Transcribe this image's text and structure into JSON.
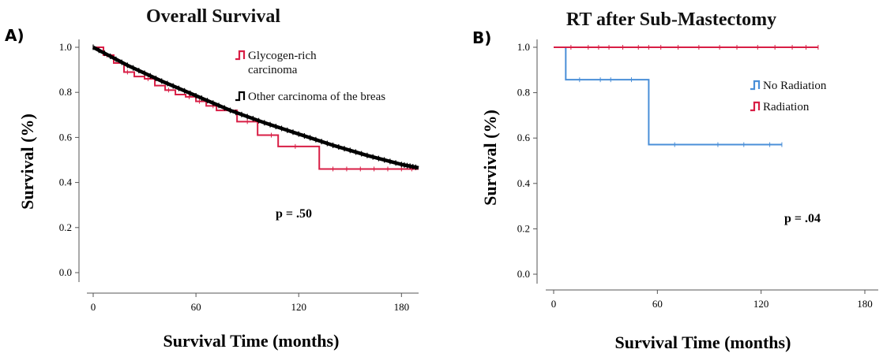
{
  "chart_data": [
    {
      "type": "line",
      "panel_label": "A)",
      "title": "Overall Survival",
      "xlabel": "Survival Time (months)",
      "ylabel": "Survival (%)",
      "xlim": [
        0,
        190
      ],
      "ylim": [
        0,
        1.0
      ],
      "xticks": [
        0,
        60,
        120,
        180
      ],
      "yticks": [
        "0.0",
        "0.2",
        "0.4",
        "0.6",
        "0.8",
        "1.0"
      ],
      "annotation": "p = .50",
      "legend_position": "top-right",
      "series": [
        {
          "name": "Glycogen-rich carcinoma",
          "legend_lines": [
            "Glycogen-rich",
            "carcinoma"
          ],
          "color": "#d81e45",
          "step": true,
          "points": [
            [
              0,
              1.0
            ],
            [
              6,
              0.965
            ],
            [
              12,
              0.93
            ],
            [
              18,
              0.89
            ],
            [
              24,
              0.87
            ],
            [
              30,
              0.86
            ],
            [
              36,
              0.83
            ],
            [
              42,
              0.81
            ],
            [
              48,
              0.79
            ],
            [
              54,
              0.78
            ],
            [
              60,
              0.76
            ],
            [
              66,
              0.74
            ],
            [
              72,
              0.72
            ],
            [
              84,
              0.67
            ],
            [
              96,
              0.61
            ],
            [
              108,
              0.56
            ],
            [
              132,
              0.46
            ],
            [
              190,
              0.46
            ]
          ],
          "censors": [
            [
              8,
              0.965
            ],
            [
              20,
              0.89
            ],
            [
              32,
              0.86
            ],
            [
              44,
              0.81
            ],
            [
              56,
              0.78
            ],
            [
              62,
              0.76
            ],
            [
              70,
              0.74
            ],
            [
              80,
              0.72
            ],
            [
              90,
              0.67
            ],
            [
              104,
              0.61
            ],
            [
              118,
              0.56
            ],
            [
              140,
              0.46
            ],
            [
              148,
              0.46
            ],
            [
              156,
              0.46
            ],
            [
              164,
              0.46
            ],
            [
              172,
              0.46
            ],
            [
              180,
              0.46
            ],
            [
              186,
              0.46
            ]
          ]
        },
        {
          "name": "Other carcinoma of the breas",
          "color": "#000000",
          "step": false,
          "smooth": true,
          "points": [
            [
              0,
              1.0
            ],
            [
              20,
              0.92
            ],
            [
              40,
              0.85
            ],
            [
              60,
              0.785
            ],
            [
              80,
              0.72
            ],
            [
              100,
              0.665
            ],
            [
              120,
              0.615
            ],
            [
              140,
              0.565
            ],
            [
              160,
              0.52
            ],
            [
              180,
              0.48
            ],
            [
              190,
              0.465
            ]
          ]
        }
      ]
    },
    {
      "type": "line",
      "panel_label": "B)",
      "title": "RT after Sub-Mastectomy",
      "xlabel": "Survival Time (months)",
      "ylabel": "Survival (%)",
      "xlim": [
        0,
        180
      ],
      "ylim": [
        0,
        1.0
      ],
      "xticks": [
        0,
        60,
        120,
        180
      ],
      "yticks": [
        "0.0",
        "0.2",
        "0.4",
        "0.6",
        "0.8",
        "1.0"
      ],
      "annotation": "p = .04",
      "legend_position": "right",
      "series": [
        {
          "name": "No Radiation",
          "color": "#4a8fd8",
          "step": true,
          "points": [
            [
              0,
              1.0
            ],
            [
              7,
              1.0
            ],
            [
              7,
              0.857
            ],
            [
              55,
              0.857
            ],
            [
              55,
              0.571
            ],
            [
              132,
              0.571
            ]
          ],
          "censors": [
            [
              15,
              0.857
            ],
            [
              27,
              0.857
            ],
            [
              33,
              0.857
            ],
            [
              45,
              0.857
            ],
            [
              70,
              0.571
            ],
            [
              95,
              0.571
            ],
            [
              110,
              0.571
            ],
            [
              125,
              0.571
            ],
            [
              132,
              0.571
            ]
          ]
        },
        {
          "name": "Radiation",
          "color": "#d81e45",
          "step": true,
          "points": [
            [
              0,
              1.0
            ],
            [
              153,
              1.0
            ]
          ],
          "censors": [
            [
              10,
              1.0
            ],
            [
              20,
              1.0
            ],
            [
              26,
              1.0
            ],
            [
              32,
              1.0
            ],
            [
              40,
              1.0
            ],
            [
              49,
              1.0
            ],
            [
              55,
              1.0
            ],
            [
              62,
              1.0
            ],
            [
              72,
              1.0
            ],
            [
              84,
              1.0
            ],
            [
              96,
              1.0
            ],
            [
              106,
              1.0
            ],
            [
              118,
              1.0
            ],
            [
              128,
              1.0
            ],
            [
              138,
              1.0
            ],
            [
              146,
              1.0
            ],
            [
              153,
              1.0
            ]
          ]
        }
      ]
    }
  ]
}
